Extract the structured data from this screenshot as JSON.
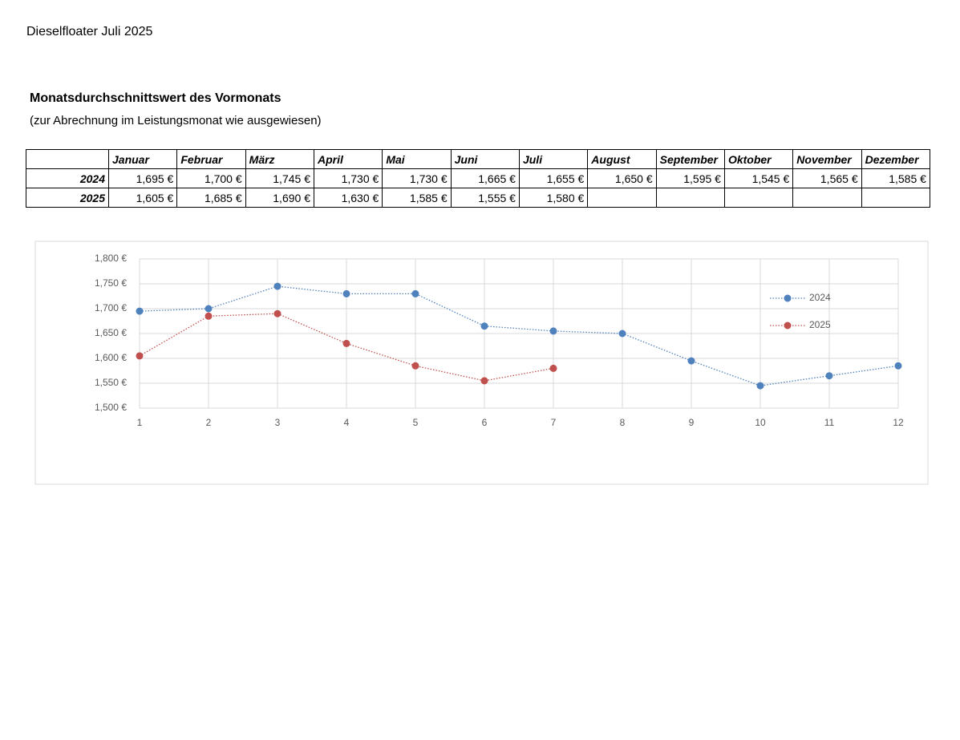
{
  "header": {
    "title": "Dieselfloater Juli 2025",
    "heading": "Monatsdurchschnittswert des Vormonats",
    "subheading": "(zur Abrechnung im Leistungsmonat wie ausgewiesen)"
  },
  "table": {
    "columns": [
      "Januar",
      "Februar",
      "März",
      "April",
      "Mai",
      "Juni",
      "Juli",
      "August",
      "September",
      "Oktober",
      "November",
      "Dezember"
    ],
    "rows": [
      {
        "label": "2024",
        "cells": [
          "1,695 €",
          "1,700 €",
          "1,745 €",
          "1,730 €",
          "1,730 €",
          "1,665 €",
          "1,655 €",
          "1,650 €",
          "1,595 €",
          "1,545 €",
          "1,565 €",
          "1,585 €"
        ]
      },
      {
        "label": "2025",
        "cells": [
          "1,605 €",
          "1,685 €",
          "1,690 €",
          "1,630 €",
          "1,585 €",
          "1,555 €",
          "1,580 €"
        ]
      }
    ]
  },
  "chart_data": {
    "type": "line",
    "x": [
      1,
      2,
      3,
      4,
      5,
      6,
      7,
      8,
      9,
      10,
      11,
      12
    ],
    "series": [
      {
        "name": "2024",
        "color": "#4f81bd",
        "values": [
          1.695,
          1.7,
          1.745,
          1.73,
          1.73,
          1.665,
          1.655,
          1.65,
          1.595,
          1.545,
          1.565,
          1.585
        ]
      },
      {
        "name": "2025",
        "color": "#c0504d",
        "values": [
          1.605,
          1.685,
          1.69,
          1.63,
          1.585,
          1.555,
          1.58,
          null,
          null,
          null,
          null,
          null
        ]
      }
    ],
    "xlim": [
      1,
      12
    ],
    "xticks": [
      1,
      2,
      3,
      4,
      5,
      6,
      7,
      8,
      9,
      10,
      11,
      12
    ],
    "ylim": [
      1.5,
      1.8
    ],
    "yticks": [
      {
        "value": 1.5,
        "label": "1,500 €"
      },
      {
        "value": 1.55,
        "label": "1,550 €"
      },
      {
        "value": 1.6,
        "label": "1,600 €"
      },
      {
        "value": 1.65,
        "label": "1,650 €"
      },
      {
        "value": 1.7,
        "label": "1,700 €"
      },
      {
        "value": 1.75,
        "label": "1,750 €"
      },
      {
        "value": 1.8,
        "label": "1,800 €"
      }
    ],
    "grid": true,
    "legend": "right"
  }
}
